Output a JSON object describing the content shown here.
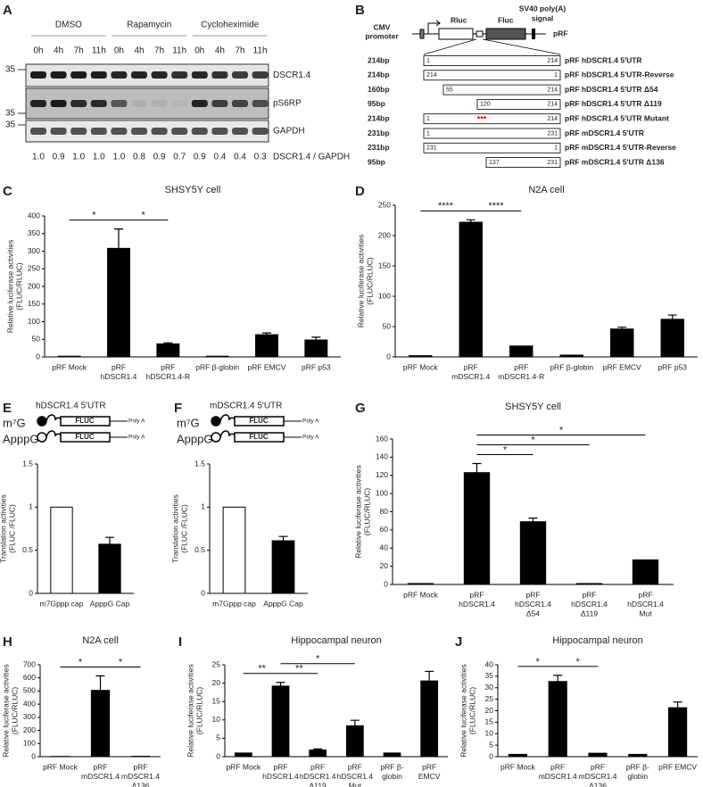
{
  "panel_labels": [
    "A",
    "B",
    "C",
    "D",
    "E",
    "F",
    "G",
    "H",
    "I",
    "J"
  ],
  "blot": {
    "conditions": [
      "DMSO",
      "Rapamycin",
      "Cycloheximide"
    ],
    "timepoints": [
      "0h",
      "4h",
      "7h",
      "11h",
      "0h",
      "4h",
      "7h",
      "11h",
      "0h",
      "4h",
      "7h",
      "11h"
    ],
    "rows": [
      "DSCR1.4",
      "pS6RP",
      "GAPDH"
    ],
    "markers": [
      "35",
      "35",
      "35"
    ],
    "ratios": [
      "1.0",
      "0.9",
      "1.0",
      "1.0",
      "1.0",
      "0.8",
      "0.9",
      "0.7",
      "0.9",
      "0.4",
      "0.4",
      "0.3"
    ],
    "ratio_label": "DSCR1.4 / GAPDH"
  },
  "construct_diagram": {
    "promoter": [
      "CMV",
      "promoter"
    ],
    "rluc": "Rluc",
    "fluc": "Fluc",
    "signal": [
      "SV40 poly(A)",
      "signal"
    ],
    "vector": "pRF",
    "mutation_mark": "***",
    "constructs": [
      {
        "size": "214bp",
        "start": "1",
        "end": "214",
        "name": "pRF hDSCR1.4 5'UTR"
      },
      {
        "size": "214bp",
        "start": "214",
        "end": "1",
        "name": "pRF hDSCR1.4 5'UTR-Reverse"
      },
      {
        "size": "160bp",
        "start": "55",
        "end": "214",
        "name": "pRF hDSCR1.4 5'UTR Δ54"
      },
      {
        "size": "95bp",
        "start": "120",
        "end": "214",
        "name": "pRF hDSCR1.4 5'UTR Δ119"
      },
      {
        "size": "214bp",
        "start": "1",
        "end": "214",
        "name": "pRF hDSCR1.4 5'UTR Mutant"
      },
      {
        "size": "231bp",
        "start": "1",
        "end": "231",
        "name": "pRF mDSCR1.4 5'UTR"
      },
      {
        "size": "231bp",
        "start": "231",
        "end": "1",
        "name": "pRF mDSCR1.4 5'UTR-Reverse"
      },
      {
        "size": "95bp",
        "start": "137",
        "end": "231",
        "name": "pRF mDSCR1.4 5'UTR Δ136"
      }
    ]
  },
  "cap_diagrams": [
    {
      "title": "hDSCR1.4 5'UTR",
      "cap1": "m⁷G",
      "cap2": "ApppG",
      "orf": "FLUC",
      "tail": "Poly A"
    },
    {
      "title": "mDSCR1.4 5'UTR",
      "cap1": "m⁷G",
      "cap2": "ApppG",
      "orf": "FLUC",
      "tail": "Poly A"
    }
  ],
  "chart_data": [
    {
      "type": "bar",
      "title": "SHSY5Y cell",
      "ylabel": [
        "Relative luciferase activities",
        "(FLUC/RLUC)"
      ],
      "categories": [
        [
          "pRF Mock"
        ],
        [
          "pRF",
          "hDSCR1.4"
        ],
        [
          "pRF",
          "hDSCR1.4-R"
        ],
        [
          "pRF β-globin"
        ],
        [
          "pRF EMCV"
        ],
        [
          "pRF p53"
        ]
      ],
      "values": [
        2,
        308,
        37,
        2,
        63,
        48
      ],
      "errors": [
        null,
        55,
        3,
        null,
        5,
        8
      ],
      "color": "#000000",
      "ylim": [
        0,
        400
      ],
      "yticks": [
        0,
        50,
        100,
        150,
        200,
        250,
        300,
        350,
        400
      ],
      "significance": [
        {
          "from": 0,
          "to": 1,
          "label": "*"
        },
        {
          "from": 1,
          "to": 2,
          "label": "*"
        }
      ]
    },
    {
      "type": "bar",
      "title": "N2A cell",
      "ylabel": [
        "Relative luciferase activities",
        "(FLUC/RLUC)"
      ],
      "categories": [
        [
          "pRF Mock"
        ],
        [
          "pRF",
          "mDSCR1.4"
        ],
        [
          "pRF",
          "mDSCR1.4-R"
        ],
        [
          "pRF β-globin"
        ],
        [
          "pRF EMCV"
        ],
        [
          "pRF p53"
        ]
      ],
      "values": [
        2,
        222,
        18,
        3,
        46,
        62
      ],
      "errors": [
        null,
        4,
        null,
        null,
        3,
        7
      ],
      "color": "#000000",
      "ylim": [
        0,
        250
      ],
      "yticks": [
        0,
        50,
        100,
        150,
        200,
        250
      ],
      "significance": [
        {
          "from": 0,
          "to": 1,
          "label": "****"
        },
        {
          "from": 1,
          "to": 2,
          "label": "****"
        }
      ]
    },
    {
      "type": "bar",
      "ylabel": [
        "Translation activities",
        "(FLUC /FLUC)"
      ],
      "categories": [
        [
          "m7Gppp cap"
        ],
        [
          "ApppG Cap"
        ]
      ],
      "values": [
        1,
        0.57
      ],
      "errors": [
        null,
        0.08
      ],
      "colors": [
        "#ffffff",
        "#000000"
      ],
      "ylim": [
        0,
        1.5
      ],
      "yticks": [
        0,
        0.5,
        1,
        1.5
      ]
    },
    {
      "type": "bar",
      "ylabel": [
        "Translation activities",
        "(FLUC /FLUC)"
      ],
      "categories": [
        [
          "m7Gppp cap"
        ],
        [
          "ApppG Cap"
        ]
      ],
      "values": [
        1,
        0.61
      ],
      "errors": [
        null,
        0.05
      ],
      "colors": [
        "#ffffff",
        "#000000"
      ],
      "ylim": [
        0,
        1.5
      ],
      "yticks": [
        0,
        0.5,
        1,
        1.5
      ]
    },
    {
      "type": "bar",
      "title": "SHSY5Y cell",
      "ylabel": [
        "Relative luciferase activities",
        "(FLUC/RLUC)"
      ],
      "categories": [
        [
          "pRF Mock"
        ],
        [
          "pRF",
          "hDSCR1.4"
        ],
        [
          "pRF",
          "hDSCR1.4",
          "Δ54"
        ],
        [
          "pRF",
          "hDSCR1.4",
          "Δ119"
        ],
        [
          "pRF",
          "hDSCR1.4",
          "Mut"
        ]
      ],
      "values": [
        1,
        123,
        69,
        1,
        27
      ],
      "errors": [
        null,
        10,
        4,
        null,
        null
      ],
      "color": "#000000",
      "ylim": [
        0,
        160
      ],
      "yticks": [
        0,
        20,
        40,
        60,
        80,
        100,
        120,
        140,
        160
      ],
      "significance": [
        {
          "from": 1,
          "to": 2,
          "label": "*"
        },
        {
          "from": 1,
          "to": 3,
          "label": "*"
        },
        {
          "from": 1,
          "to": 4,
          "label": "*"
        }
      ]
    },
    {
      "type": "bar",
      "title": "N2A cell",
      "ylabel": [
        "Relative luciferase activities",
        "(FLUC/RLUC)"
      ],
      "categories": [
        [
          "pRF Mock"
        ],
        [
          "pRF",
          "mDSCR1.4"
        ],
        [
          "pRF",
          "mDSCR1.4",
          "Δ136"
        ]
      ],
      "values": [
        2,
        505,
        3
      ],
      "errors": [
        null,
        110,
        null
      ],
      "color": "#000000",
      "ylim": [
        0,
        700
      ],
      "yticks": [
        0,
        100,
        200,
        300,
        400,
        500,
        600,
        700
      ],
      "significance": [
        {
          "from": 0,
          "to": 1,
          "label": "*"
        },
        {
          "from": 1,
          "to": 2,
          "label": "*"
        }
      ]
    },
    {
      "type": "bar",
      "title": "Hippocampal neuron",
      "ylabel": [
        "Relative luciferase activities",
        "(FLUC/RLUC)"
      ],
      "categories": [
        [
          "pRF Mock"
        ],
        [
          "pRF",
          "hDSCR1.4"
        ],
        [
          "pRF",
          "hDSCR1.4",
          "Δ119"
        ],
        [
          "pRF",
          "hDSCR1.4",
          "Mut"
        ],
        [
          "pRF β-",
          "globin"
        ],
        [
          "pRF",
          "EMCV"
        ]
      ],
      "values": [
        1,
        19.2,
        1.8,
        8.4,
        1,
        20.6
      ],
      "errors": [
        null,
        1,
        0.3,
        1.5,
        null,
        2.6
      ],
      "color": "#000000",
      "ylim": [
        0,
        25
      ],
      "yticks": [
        0,
        5,
        10,
        15,
        20,
        25
      ],
      "significance": [
        {
          "from": 0,
          "to": 1,
          "label": "**"
        },
        {
          "from": 1,
          "to": 2,
          "label": "**"
        },
        {
          "from": 1,
          "to": 3,
          "label": "*"
        }
      ]
    },
    {
      "type": "bar",
      "title": "Hippocampal neuron",
      "ylabel": [
        "Relative luciferase activities",
        "(FLUC/RLUC)"
      ],
      "categories": [
        [
          "pRF Mock"
        ],
        [
          "pRF",
          "mDSCR1.4"
        ],
        [
          "pRF",
          "mDSCR1.4",
          "Δ136"
        ],
        [
          "pRF β-",
          "globin"
        ],
        [
          "pRF EMCV"
        ]
      ],
      "values": [
        1,
        32.7,
        1.5,
        1,
        21.3
      ],
      "errors": [
        null,
        2.7,
        null,
        null,
        2.5
      ],
      "color": "#000000",
      "ylim": [
        0,
        40
      ],
      "yticks": [
        0,
        5,
        10,
        15,
        20,
        25,
        30,
        35,
        40
      ],
      "significance": [
        {
          "from": 0,
          "to": 1,
          "label": "*"
        },
        {
          "from": 1,
          "to": 2,
          "label": "*"
        }
      ]
    }
  ]
}
